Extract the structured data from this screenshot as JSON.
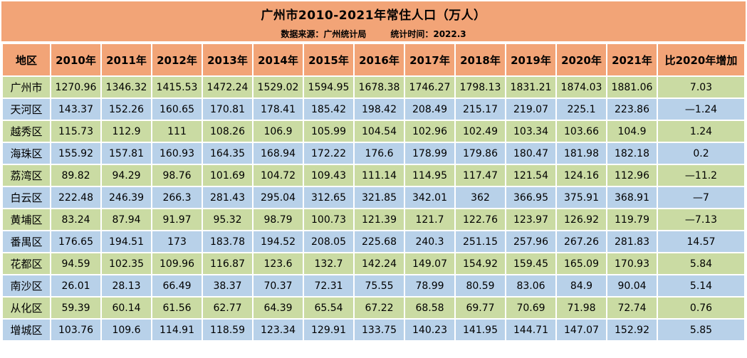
{
  "title": "广州市2010-2021年常住人口（万人）",
  "subtitle": {
    "source": "数据来源：广州统计局",
    "time": "统计时间：2022.3"
  },
  "colors": {
    "band": "#F2A477",
    "row_green": "#CADBA3",
    "row_blue": "#B8D1E9",
    "grid": "#ffffff",
    "text": "#000000"
  },
  "chart_data": {
    "type": "table",
    "title": "广州市2010-2021年常住人口（万人）",
    "columns": [
      "地区",
      "2010年",
      "2011年",
      "2012年",
      "2013年",
      "2014年",
      "2015年",
      "2016年",
      "2017年",
      "2018年",
      "2019年",
      "2020年",
      "2021年",
      "比2020年增加"
    ],
    "rows": [
      {
        "region": "广州市",
        "values": [
          "1270.96",
          "1346.32",
          "1415.53",
          "1472.24",
          "1529.02",
          "1594.95",
          "1678.38",
          "1746.27",
          "1798.13",
          "1831.21",
          "1874.03",
          "1881.06"
        ],
        "change": "7.03"
      },
      {
        "region": "天河区",
        "values": [
          "143.37",
          "152.26",
          "160.65",
          "170.81",
          "178.41",
          "185.42",
          "198.42",
          "208.49",
          "215.17",
          "219.07",
          "225.1",
          "223.86"
        ],
        "change": "—1.24"
      },
      {
        "region": "越秀区",
        "values": [
          "115.73",
          "112.9",
          "111",
          "108.26",
          "106.9",
          "105.99",
          "104.54",
          "102.96",
          "102.49",
          "103.34",
          "103.66",
          "104.9"
        ],
        "change": "1.24"
      },
      {
        "region": "海珠区",
        "values": [
          "155.92",
          "157.81",
          "160.93",
          "164.35",
          "168.94",
          "172.22",
          "176.6",
          "178.99",
          "179.86",
          "180.47",
          "181.98",
          "182.18"
        ],
        "change": "0.2"
      },
      {
        "region": "荔湾区",
        "values": [
          "89.82",
          "94.29",
          "98.76",
          "101.69",
          "104.72",
          "109.43",
          "111.14",
          "114.95",
          "117.47",
          "121.54",
          "124.16",
          "112.96"
        ],
        "change": "—11.2"
      },
      {
        "region": "白云区",
        "values": [
          "222.48",
          "246.39",
          "266.3",
          "281.43",
          "295.04",
          "312.65",
          "321.85",
          "342.01",
          "362",
          "366.95",
          "375.91",
          "368.91"
        ],
        "change": "—7"
      },
      {
        "region": "黄埔区",
        "values": [
          "83.24",
          "87.94",
          "91.97",
          "95.32",
          "98.79",
          "100.73",
          "121.39",
          "121.7",
          "122.76",
          "123.97",
          "126.92",
          "119.79"
        ],
        "change": "—7.13"
      },
      {
        "region": "番禺区",
        "values": [
          "176.65",
          "194.51",
          "173",
          "183.78",
          "194.52",
          "208.05",
          "225.68",
          "240.3",
          "251.15",
          "257.96",
          "267.26",
          "281.83"
        ],
        "change": "14.57"
      },
      {
        "region": "花都区",
        "values": [
          "94.59",
          "102.35",
          "109.96",
          "116.87",
          "123.6",
          "132.7",
          "142.24",
          "149.07",
          "154.92",
          "159.45",
          "165.09",
          "170.93"
        ],
        "change": "5.84"
      },
      {
        "region": "南沙区",
        "values": [
          "26.01",
          "28.13",
          "66.49",
          "38.37",
          "70.37",
          "72.31",
          "75.55",
          "78.99",
          "80.59",
          "83.06",
          "84.9",
          "90.04"
        ],
        "change": "5.14"
      },
      {
        "region": "从化区",
        "values": [
          "59.39",
          "60.14",
          "61.56",
          "62.77",
          "64.39",
          "65.54",
          "67.22",
          "68.58",
          "69.77",
          "70.69",
          "71.98",
          "72.74"
        ],
        "change": "0.76"
      },
      {
        "region": "增城区",
        "values": [
          "103.76",
          "109.6",
          "114.91",
          "118.59",
          "123.34",
          "129.91",
          "133.75",
          "140.23",
          "141.95",
          "144.71",
          "147.07",
          "152.92"
        ],
        "change": "5.85"
      }
    ]
  }
}
